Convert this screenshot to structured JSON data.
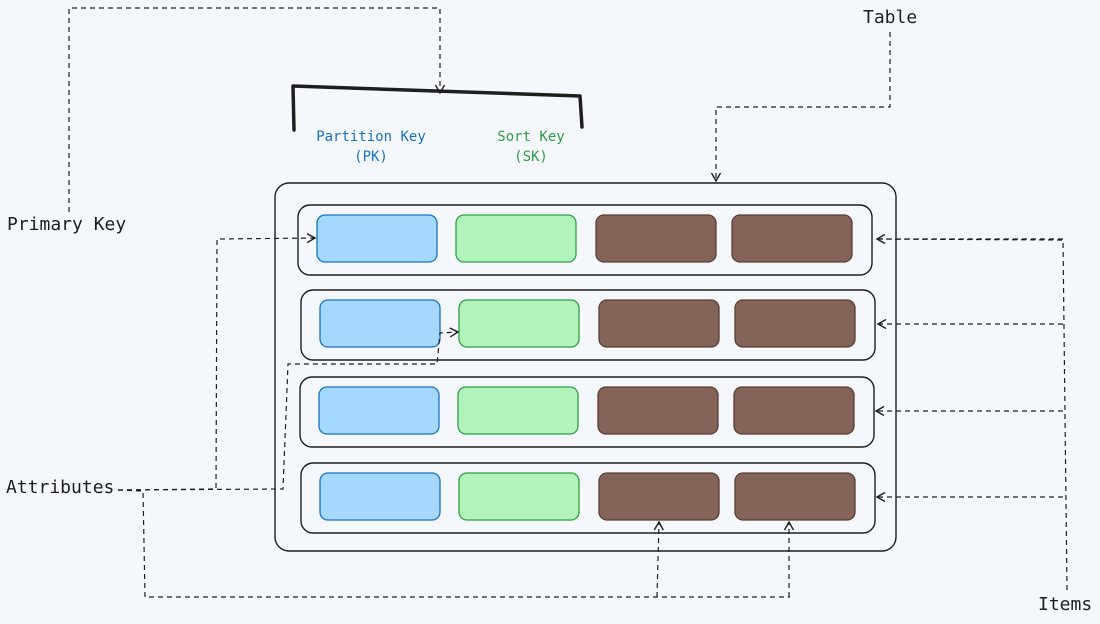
{
  "labels": {
    "primary_key": "Primary Key",
    "table": "Table",
    "attributes": "Attributes",
    "items": "Items"
  },
  "key_labels": {
    "pk_name": "Partition Key",
    "pk_abbr": "(PK)",
    "sk_name": "Sort Key",
    "sk_abbr": "(SK)"
  },
  "colors": {
    "background": "#f4f8fc",
    "stroke": "#1e1e1e",
    "pk_fill": "#a5d8ff",
    "pk_stroke": "#1971c2",
    "sk_fill": "#b2f2bb",
    "sk_stroke": "#2f9e44",
    "attr_fill": "#846358",
    "attr_stroke": "#5c3d30",
    "pk_text": "#1971c2",
    "sk_text": "#2f9e44"
  },
  "item_count": 4
}
